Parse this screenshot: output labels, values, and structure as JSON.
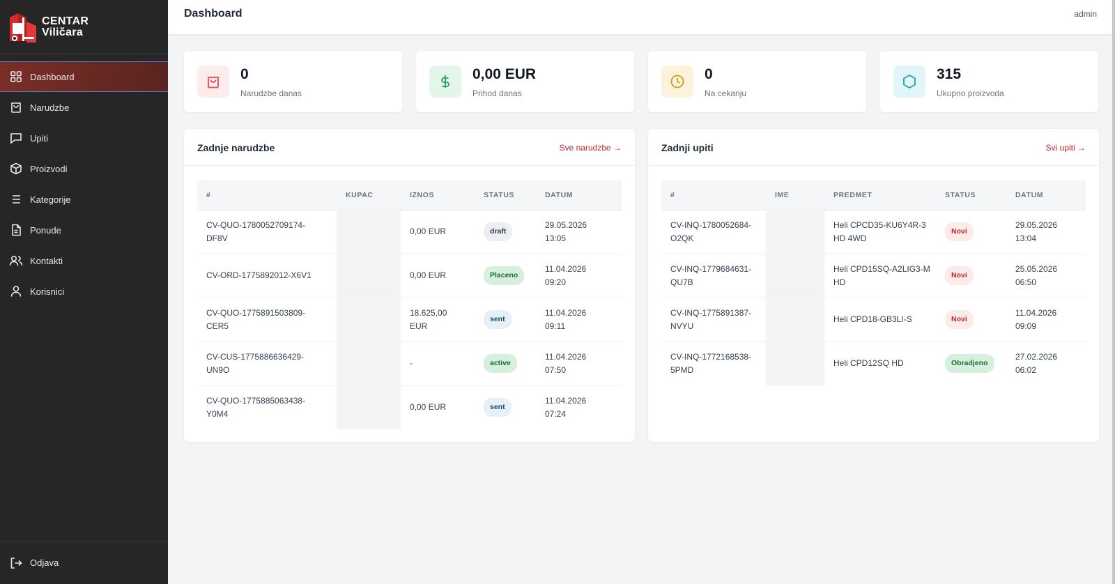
{
  "app": {
    "brand_line1": "CENTAR",
    "brand_line2": "Viličara"
  },
  "header": {
    "title": "Dashboard",
    "user": "admin"
  },
  "sidebar": {
    "items": [
      {
        "label": "Dashboard",
        "icon": "grid-icon"
      },
      {
        "label": "Narudzbe",
        "icon": "shopping-bag-icon"
      },
      {
        "label": "Upiti",
        "icon": "message-icon"
      },
      {
        "label": "Proizvodi",
        "icon": "box-icon"
      },
      {
        "label": "Kategorije",
        "icon": "list-icon"
      },
      {
        "label": "Ponude",
        "icon": "document-icon"
      },
      {
        "label": "Kontakti",
        "icon": "users-icon"
      },
      {
        "label": "Korisnici",
        "icon": "user-icon"
      }
    ],
    "logout": "Odjava"
  },
  "stats": [
    {
      "value": "0",
      "label": "Narudzbe danas",
      "icon": "bag-icon",
      "color": "#e5484d",
      "bg": "#fdecec"
    },
    {
      "value": "0,00 EUR",
      "label": "Prihod danas",
      "icon": "dollar-icon",
      "color": "#2f9e58",
      "bg": "#e4f5ea"
    },
    {
      "value": "0",
      "label": "Na cekanju",
      "icon": "clock-icon",
      "color": "#d29a1a",
      "bg": "#fdf3dc"
    },
    {
      "value": "315",
      "label": "Ukupno proizvoda",
      "icon": "hexagon-icon",
      "color": "#1f9fb8",
      "bg": "#e2f5f8"
    }
  ],
  "orders": {
    "title": "Zadnje narudzbe",
    "link": "Sve narudzbe →",
    "columns": [
      "#",
      "KUPAC",
      "IZNOS",
      "STATUS",
      "DATUM"
    ],
    "rows": [
      {
        "id": "CV-QUO-1780052709174-DF8V",
        "amount": "0,00 EUR",
        "status": "draft",
        "date": "29.05.2026 13:05"
      },
      {
        "id": "CV-ORD-1775892012-X6V1",
        "amount": "0,00 EUR",
        "status": "Placeno",
        "date": "11.04.2026 09:20"
      },
      {
        "id": "CV-QUO-1775891503809-CER5",
        "amount": "18.625,00 EUR",
        "status": "sent",
        "date": "11.04.2026 09:11"
      },
      {
        "id": "CV-CUS-1775886636429-UN9O",
        "amount": "-",
        "status": "active",
        "date": "11.04.2026 07:50"
      },
      {
        "id": "CV-QUO-1775885063438-Y0M4",
        "amount": "0,00 EUR",
        "status": "sent",
        "date": "11.04.2026 07:24"
      }
    ]
  },
  "inquiries": {
    "title": "Zadnji upiti",
    "link": "Svi upiti →",
    "columns": [
      "#",
      "IME",
      "PREDMET",
      "STATUS",
      "DATUM"
    ],
    "rows": [
      {
        "id": "CV-INQ-1780052684-O2QK",
        "subject": "Heli CPCD35-KU6Y4R-3 HD 4WD",
        "status": "Novi",
        "date": "29.05.2026 13:04"
      },
      {
        "id": "CV-INQ-1779684631-QU7B",
        "subject": "Heli CPD15SQ-A2LIG3-M HD",
        "status": "Novi",
        "date": "25.05.2026 06:50"
      },
      {
        "id": "CV-INQ-1775891387-NVYU",
        "subject": "Heli CPD18-GB3LI-S",
        "status": "Novi",
        "date": "11.04.2026 09:09"
      },
      {
        "id": "CV-INQ-1772168538-5PMD",
        "subject": "Heli CPD12SQ HD",
        "status": "Obradjeno",
        "date": "27.02.2026 06:02"
      }
    ]
  }
}
